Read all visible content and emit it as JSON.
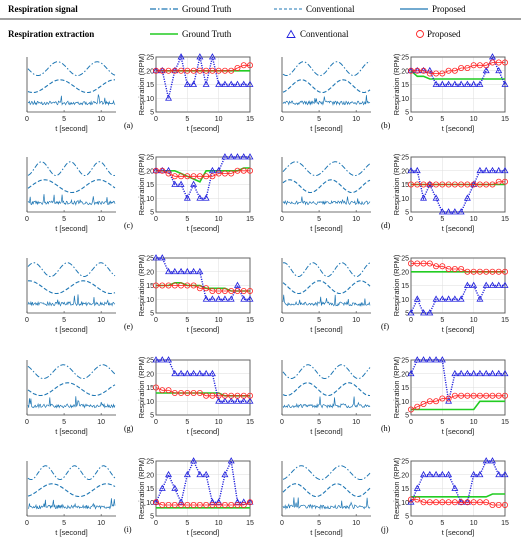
{
  "header": {
    "signal_title": "Respiration signal",
    "signal_legend": [
      "Ground Truth",
      "Conventional",
      "Proposed"
    ],
    "extraction_title": "Respiration extraction",
    "extraction_legend": [
      "Ground Truth",
      "Conventional",
      "Proposed"
    ]
  },
  "colors": {
    "signal_blue": "#1f77b4",
    "ground_truth_green": "#22cc22",
    "conventional_blue": "#2222dd",
    "proposed_red": "#ff2222"
  },
  "signal_panel": {
    "xlabel": "t [second]",
    "xticks": [
      0,
      5,
      10
    ]
  },
  "extraction_panel": {
    "ylabel": "Respiration (RPM)",
    "xlabel": "t [second]",
    "xticks": [
      0,
      5,
      10,
      15
    ]
  },
  "chart_data": [
    {
      "id": "a",
      "label": "(a)",
      "type": "line",
      "xlim": [
        0,
        15
      ],
      "ylim": [
        5,
        25
      ],
      "yticks": [
        5,
        10,
        15,
        20,
        25
      ],
      "x": [
        0,
        1,
        2,
        3,
        4,
        5,
        6,
        7,
        8,
        9,
        10,
        11,
        12,
        13,
        14,
        15
      ],
      "series": [
        {
          "name": "Ground Truth",
          "values": [
            20,
            20,
            20,
            20,
            20,
            20,
            20,
            20,
            20,
            20,
            20,
            20,
            20,
            20,
            20,
            20
          ]
        },
        {
          "name": "Conventional",
          "values": [
            20,
            20,
            10,
            20,
            25,
            15,
            15,
            25,
            15,
            25,
            15,
            15,
            15,
            15,
            15,
            15
          ]
        },
        {
          "name": "Proposed",
          "values": [
            20,
            20,
            20,
            20,
            20,
            20,
            20,
            20,
            20,
            20,
            20,
            20,
            20,
            21,
            22,
            22
          ]
        }
      ]
    },
    {
      "id": "b",
      "label": "(b)",
      "type": "line",
      "xlim": [
        0,
        15
      ],
      "ylim": [
        5,
        25
      ],
      "yticks": [
        5,
        10,
        15,
        20,
        25
      ],
      "x": [
        0,
        1,
        2,
        3,
        4,
        5,
        6,
        7,
        8,
        9,
        10,
        11,
        12,
        13,
        14,
        15
      ],
      "series": [
        {
          "name": "Ground Truth",
          "values": [
            20,
            18,
            18,
            17,
            17,
            17,
            17,
            17,
            17,
            17,
            17,
            17,
            17,
            17,
            17,
            17
          ]
        },
        {
          "name": "Conventional",
          "values": [
            20,
            20,
            20,
            20,
            15,
            15,
            15,
            15,
            15,
            15,
            15,
            15,
            20,
            25,
            20,
            15
          ]
        },
        {
          "name": "Proposed",
          "values": [
            20,
            20,
            20,
            19,
            19,
            19,
            20,
            20,
            21,
            21,
            22,
            22,
            22,
            23,
            23,
            23
          ]
        }
      ]
    },
    {
      "id": "c",
      "label": "(c)",
      "type": "line",
      "xlim": [
        0,
        15
      ],
      "ylim": [
        5,
        25
      ],
      "yticks": [
        5,
        10,
        15,
        20,
        25
      ],
      "x": [
        0,
        1,
        2,
        3,
        4,
        5,
        6,
        7,
        8,
        9,
        10,
        11,
        12,
        13,
        14,
        15
      ],
      "series": [
        {
          "name": "Ground Truth",
          "values": [
            20,
            20,
            20,
            20,
            19,
            18,
            17,
            16,
            20,
            20,
            20,
            20,
            20,
            20,
            21,
            21
          ]
        },
        {
          "name": "Conventional",
          "values": [
            20,
            20,
            20,
            15,
            15,
            10,
            15,
            10,
            10,
            20,
            20,
            25,
            25,
            25,
            25,
            25
          ]
        },
        {
          "name": "Proposed",
          "values": [
            20,
            20,
            19,
            18,
            18,
            18,
            18,
            18,
            18,
            18,
            19,
            19,
            19,
            20,
            20,
            20
          ]
        }
      ]
    },
    {
      "id": "d",
      "label": "(d)",
      "type": "line",
      "xlim": [
        0,
        15
      ],
      "ylim": [
        5,
        25
      ],
      "yticks": [
        5,
        10,
        15,
        20,
        25
      ],
      "x": [
        0,
        1,
        2,
        3,
        4,
        5,
        6,
        7,
        8,
        9,
        10,
        11,
        12,
        13,
        14,
        15
      ],
      "series": [
        {
          "name": "Ground Truth",
          "values": [
            15,
            15,
            15,
            15,
            15,
            15,
            15,
            15,
            15,
            15,
            15,
            15,
            15,
            15,
            15,
            15
          ]
        },
        {
          "name": "Conventional",
          "values": [
            20,
            20,
            10,
            15,
            10,
            5,
            5,
            5,
            5,
            10,
            15,
            20,
            20,
            20,
            20,
            20
          ]
        },
        {
          "name": "Proposed",
          "values": [
            15,
            15,
            15,
            15,
            15,
            15,
            15,
            15,
            15,
            15,
            15,
            15,
            15,
            15,
            16,
            16
          ]
        }
      ]
    },
    {
      "id": "e",
      "label": "(e)",
      "type": "line",
      "xlim": [
        0,
        15
      ],
      "ylim": [
        5,
        25
      ],
      "yticks": [
        5,
        10,
        15,
        20,
        25
      ],
      "x": [
        0,
        1,
        2,
        3,
        4,
        5,
        6,
        7,
        8,
        9,
        10,
        11,
        12,
        13,
        14,
        15
      ],
      "series": [
        {
          "name": "Ground Truth",
          "values": [
            15,
            15,
            15,
            16,
            16,
            15,
            15,
            15,
            14,
            14,
            14,
            14,
            13,
            13,
            13,
            13
          ]
        },
        {
          "name": "Conventional",
          "values": [
            25,
            25,
            20,
            20,
            20,
            20,
            20,
            20,
            10,
            10,
            10,
            10,
            10,
            15,
            10,
            10
          ]
        },
        {
          "name": "Proposed",
          "values": [
            15,
            15,
            15,
            15,
            15,
            15,
            15,
            14,
            14,
            13,
            13,
            13,
            13,
            13,
            13,
            13
          ]
        }
      ]
    },
    {
      "id": "f",
      "label": "(f)",
      "type": "line",
      "xlim": [
        0,
        15
      ],
      "ylim": [
        5,
        25
      ],
      "yticks": [
        5,
        10,
        15,
        20,
        25
      ],
      "x": [
        0,
        1,
        2,
        3,
        4,
        5,
        6,
        7,
        8,
        9,
        10,
        11,
        12,
        13,
        14,
        15
      ],
      "series": [
        {
          "name": "Ground Truth",
          "values": [
            20,
            20,
            20,
            20,
            20,
            20,
            20,
            20,
            20,
            20,
            20,
            20,
            20,
            20,
            20,
            20
          ]
        },
        {
          "name": "Conventional",
          "values": [
            5,
            10,
            5,
            5,
            10,
            10,
            10,
            10,
            10,
            15,
            15,
            10,
            15,
            15,
            15,
            15
          ]
        },
        {
          "name": "Proposed",
          "values": [
            23,
            23,
            23,
            23,
            22,
            22,
            21,
            21,
            21,
            20,
            20,
            20,
            20,
            20,
            20,
            20
          ]
        }
      ]
    },
    {
      "id": "g",
      "label": "(g)",
      "type": "line",
      "xlim": [
        0,
        15
      ],
      "ylim": [
        5,
        25
      ],
      "yticks": [
        5,
        10,
        15,
        20,
        25
      ],
      "x": [
        0,
        1,
        2,
        3,
        4,
        5,
        6,
        7,
        8,
        9,
        10,
        11,
        12,
        13,
        14,
        15
      ],
      "series": [
        {
          "name": "Ground Truth",
          "values": [
            13,
            13,
            13,
            13,
            13,
            13,
            13,
            13,
            13,
            13,
            13,
            12,
            12,
            12,
            12,
            12
          ]
        },
        {
          "name": "Conventional",
          "values": [
            25,
            25,
            25,
            20,
            20,
            20,
            20,
            20,
            20,
            20,
            10,
            10,
            10,
            10,
            10,
            10
          ]
        },
        {
          "name": "Proposed",
          "values": [
            15,
            14,
            14,
            13,
            13,
            13,
            13,
            13,
            12,
            12,
            12,
            12,
            12,
            12,
            12,
            12
          ]
        }
      ]
    },
    {
      "id": "h",
      "label": "(h)",
      "type": "line",
      "xlim": [
        0,
        15
      ],
      "ylim": [
        5,
        25
      ],
      "yticks": [
        5,
        10,
        15,
        20,
        25
      ],
      "x": [
        0,
        1,
        2,
        3,
        4,
        5,
        6,
        7,
        8,
        9,
        10,
        11,
        12,
        13,
        14,
        15
      ],
      "series": [
        {
          "name": "Ground Truth",
          "values": [
            7,
            7,
            7,
            7,
            7,
            7,
            7,
            7,
            7,
            7,
            7,
            10,
            10,
            10,
            10,
            10
          ]
        },
        {
          "name": "Conventional",
          "values": [
            20,
            25,
            25,
            25,
            25,
            25,
            10,
            20,
            20,
            20,
            20,
            20,
            20,
            20,
            20,
            20
          ]
        },
        {
          "name": "Proposed",
          "values": [
            7,
            8,
            9,
            10,
            10,
            11,
            11,
            12,
            12,
            12,
            12,
            12,
            12,
            12,
            12,
            12
          ]
        }
      ]
    },
    {
      "id": "i",
      "label": "(i)",
      "type": "line",
      "xlim": [
        0,
        15
      ],
      "ylim": [
        5,
        25
      ],
      "yticks": [
        5,
        10,
        15,
        20,
        25
      ],
      "x": [
        0,
        1,
        2,
        3,
        4,
        5,
        6,
        7,
        8,
        9,
        10,
        11,
        12,
        13,
        14,
        15
      ],
      "series": [
        {
          "name": "Ground Truth",
          "values": [
            8,
            8,
            8,
            8,
            8,
            8,
            8,
            8,
            8,
            8,
            8,
            8,
            8,
            8,
            8,
            8
          ]
        },
        {
          "name": "Conventional",
          "values": [
            10,
            15,
            20,
            15,
            10,
            20,
            25,
            20,
            20,
            10,
            10,
            20,
            25,
            10,
            10,
            10
          ]
        },
        {
          "name": "Proposed",
          "values": [
            10,
            9,
            9,
            9,
            9,
            9,
            9,
            9,
            9,
            9,
            9,
            9,
            9,
            9,
            9,
            10
          ]
        }
      ]
    },
    {
      "id": "j",
      "label": "(j)",
      "type": "line",
      "xlim": [
        0,
        15
      ],
      "ylim": [
        5,
        25
      ],
      "yticks": [
        5,
        10,
        15,
        20,
        25
      ],
      "x": [
        0,
        1,
        2,
        3,
        4,
        5,
        6,
        7,
        8,
        9,
        10,
        11,
        12,
        13,
        14,
        15
      ],
      "series": [
        {
          "name": "Ground Truth",
          "values": [
            12,
            12,
            12,
            12,
            12,
            12,
            12,
            12,
            12,
            12,
            12,
            12,
            12,
            13,
            13,
            13
          ]
        },
        {
          "name": "Conventional",
          "values": [
            10,
            15,
            20,
            20,
            20,
            20,
            20,
            15,
            10,
            10,
            20,
            20,
            25,
            25,
            20,
            20
          ]
        },
        {
          "name": "Proposed",
          "values": [
            11,
            11,
            10,
            10,
            10,
            10,
            10,
            10,
            10,
            10,
            10,
            10,
            10,
            9,
            9,
            9
          ]
        }
      ]
    }
  ]
}
